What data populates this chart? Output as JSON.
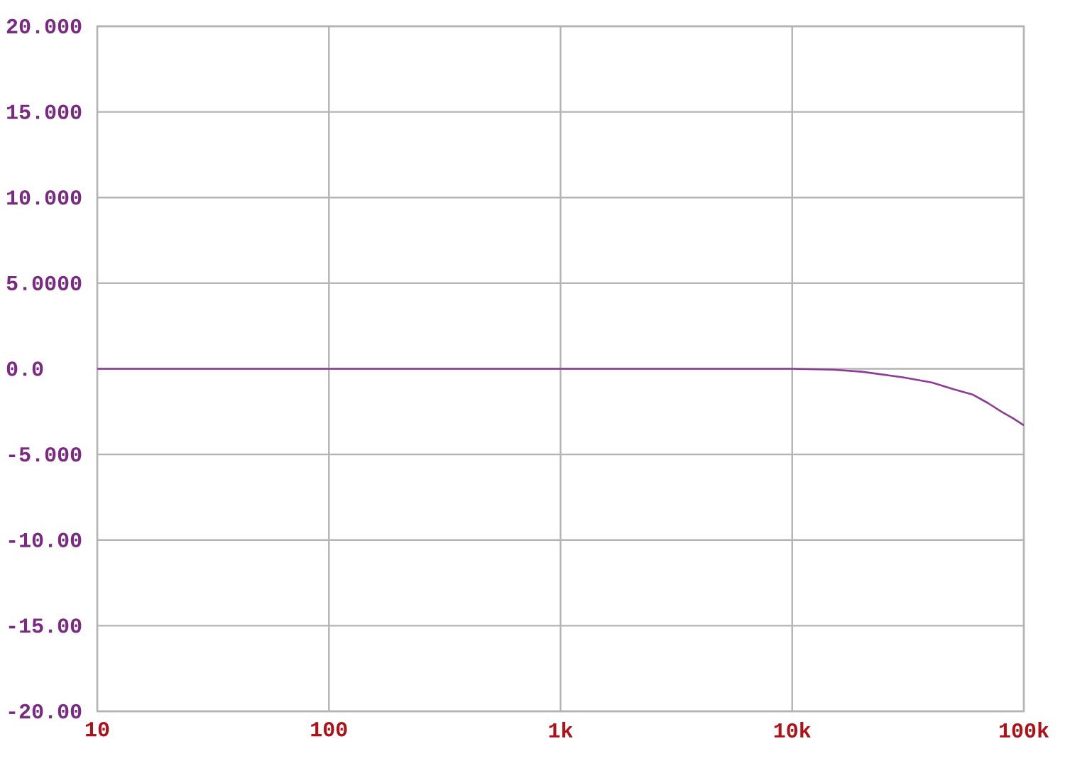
{
  "chart_data": {
    "type": "line",
    "log": "x",
    "grid": true,
    "x": [
      10,
      100,
      1000,
      10000,
      15000,
      20000,
      30000,
      40000,
      50000,
      60000,
      70000,
      80000,
      90000,
      100000
    ],
    "series": [
      {
        "color": "#8e3a96",
        "values": [
          0,
          0,
          0,
          0,
          -0.05,
          -0.17,
          -0.5,
          -0.8,
          -1.2,
          -1.5,
          -2.0,
          -2.5,
          -2.9,
          -3.3
        ]
      }
    ],
    "xlim": [
      10,
      100000
    ],
    "xticks": [
      10,
      100,
      {
        "value": 1000,
        "label": "1k"
      },
      {
        "value": 10000,
        "label": "10k"
      },
      {
        "value": 100000,
        "label": "100k"
      }
    ],
    "ylim": [
      -20,
      20
    ],
    "yticks": [
      {
        "value": 20,
        "label": "20.000"
      },
      {
        "value": 15,
        "label": "15.000"
      },
      {
        "value": 10,
        "label": "10.000"
      },
      {
        "value": 5,
        "label": "5.0000"
      },
      {
        "value": 0,
        "label": "0.0"
      },
      {
        "value": -5,
        "label": "-5.000"
      },
      {
        "value": -10,
        "label": "-10.00"
      },
      {
        "value": -15,
        "label": "-15.00"
      },
      {
        "value": -20,
        "label": "-20.00"
      }
    ]
  }
}
